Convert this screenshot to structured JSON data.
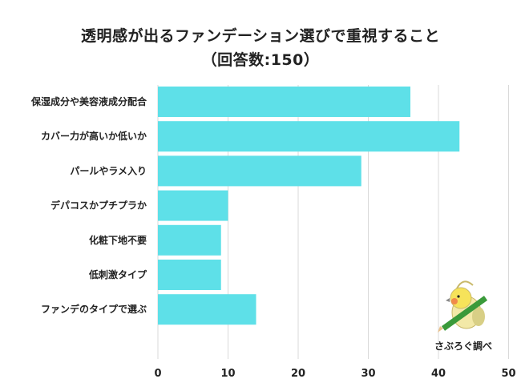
{
  "chart_data": {
    "type": "bar",
    "orientation": "horizontal",
    "title": "透明感が出るファンデーション選びで重視すること",
    "subtitle": "（回答数:150）",
    "categories": [
      "保湿成分や美容液成分配合",
      "カバー力が高いか低いか",
      "パールやラメ入り",
      "デパコスかプチプラか",
      "化粧下地不要",
      "低刺激タイプ",
      "ファンデのタイプで選ぶ"
    ],
    "values": [
      36,
      43,
      29,
      10,
      9,
      9,
      14
    ],
    "xlim": [
      0,
      50
    ],
    "xticks": [
      0,
      10,
      20,
      30,
      40,
      50
    ],
    "bar_color": "#5ee0e8",
    "grid": true
  },
  "logo": {
    "text": "さぶろぐ調べ",
    "icon": "cockatiel-bird-with-pencil"
  }
}
